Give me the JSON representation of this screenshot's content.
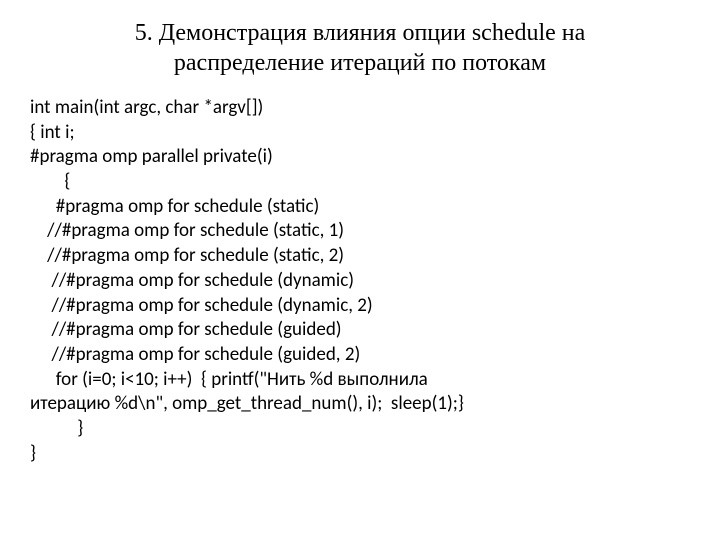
{
  "title": "5. Демонстрация влияния опции  schedule  на распределение итераций по потокам",
  "code": {
    "line1": "int main(int argc, char *argv[])",
    "line2": "{ int i;",
    "line3": "#pragma omp parallel private(i)",
    "line4": "        {",
    "line5": "      #pragma omp for schedule (static)",
    "line6": "    //#pragma omp for schedule (static, 1)",
    "line7": "    //#pragma omp for schedule (static, 2)",
    "line8": "     //#pragma omp for schedule (dynamic)",
    "line9": "     //#pragma omp for schedule (dynamic, 2)",
    "line10": "     //#pragma omp for schedule (guided)",
    "line11": "     //#pragma omp for schedule (guided, 2)",
    "line12": "      for (i=0; i<10; i++)  { printf(\"Нить %d выполнила",
    "line13": "итерацию %d\\n\", omp_get_thread_num(), i);  sleep(1);}",
    "line14": "           }",
    "line15": "}"
  },
  "colors": {
    "background": "#ffffff",
    "text": "#000000"
  },
  "fonts": {
    "title_family": "Times New Roman",
    "title_size": 24,
    "code_family": "Calibri",
    "code_size": 19
  }
}
